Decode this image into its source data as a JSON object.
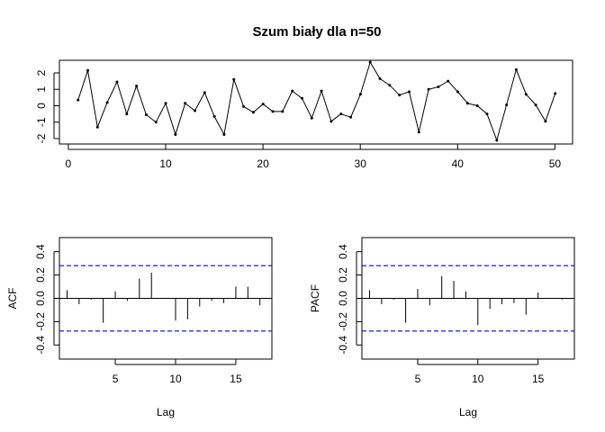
{
  "chart_data": [
    {
      "type": "line",
      "title": "Szum biały dla n=50",
      "xlabel": "",
      "ylabel": "",
      "xlim": [
        1,
        50
      ],
      "ylim": [
        -2.1,
        2.6
      ],
      "x_ticks": [
        "0",
        "10",
        "20",
        "30",
        "40",
        "50"
      ],
      "y_ticks": [
        "-2",
        "-1",
        "0",
        "1",
        "2"
      ],
      "x": [
        1,
        2,
        3,
        4,
        5,
        6,
        7,
        8,
        9,
        10,
        11,
        12,
        13,
        14,
        15,
        16,
        17,
        18,
        19,
        20,
        21,
        22,
        23,
        24,
        25,
        26,
        27,
        28,
        29,
        30,
        31,
        32,
        33,
        34,
        35,
        36,
        37,
        38,
        39,
        40,
        41,
        42,
        43,
        44,
        45,
        46,
        47,
        48,
        49,
        50
      ],
      "values": [
        0.35,
        2.15,
        -1.3,
        0.2,
        1.45,
        -0.5,
        1.2,
        -0.55,
        -1.0,
        0.15,
        -1.75,
        0.15,
        -0.3,
        0.8,
        -0.65,
        -1.75,
        1.6,
        -0.05,
        -0.4,
        0.1,
        -0.35,
        -0.35,
        0.9,
        0.45,
        -0.75,
        0.9,
        -0.95,
        -0.5,
        -0.7,
        0.7,
        2.65,
        1.65,
        1.25,
        0.65,
        0.85,
        -1.6,
        1.0,
        1.15,
        1.5,
        0.85,
        0.15,
        0.0,
        -0.5,
        -2.1,
        0.05,
        2.2,
        0.7,
        0.05,
        -0.95,
        0.75
      ],
      "grid": false,
      "marker": "point"
    },
    {
      "type": "bar",
      "title": "",
      "xlabel": "Lag",
      "ylabel": "ACF",
      "xlim": [
        0.5,
        17.5
      ],
      "ylim": [
        -0.5,
        0.5
      ],
      "x_ticks": [
        "5",
        "10",
        "15"
      ],
      "y_ticks": [
        "-0.4",
        "-0.2",
        "0.0",
        "0.2",
        "0.4"
      ],
      "x": [
        1,
        2,
        3,
        4,
        5,
        6,
        7,
        8,
        9,
        10,
        11,
        12,
        13,
        14,
        15,
        16,
        17
      ],
      "values": [
        0.07,
        -0.05,
        -0.01,
        -0.21,
        0.06,
        -0.02,
        0.17,
        0.22,
        0.0,
        -0.19,
        -0.18,
        -0.07,
        -0.02,
        -0.04,
        0.1,
        0.1,
        -0.06
      ],
      "confidence_band": 0.28,
      "confidence_color": "#0000ff"
    },
    {
      "type": "bar",
      "title": "",
      "xlabel": "Lag",
      "ylabel": "PACF",
      "xlim": [
        0.5,
        17.5
      ],
      "ylim": [
        -0.5,
        0.5
      ],
      "x_ticks": [
        "5",
        "10",
        "15"
      ],
      "y_ticks": [
        "-0.4",
        "-0.2",
        "0.0",
        "0.2",
        "0.4"
      ],
      "x": [
        1,
        2,
        3,
        4,
        5,
        6,
        7,
        8,
        9,
        10,
        11,
        12,
        13,
        14,
        15,
        16,
        17
      ],
      "values": [
        0.07,
        -0.05,
        -0.01,
        -0.21,
        0.08,
        -0.06,
        0.19,
        0.15,
        0.06,
        -0.23,
        -0.09,
        -0.05,
        -0.04,
        -0.14,
        0.05,
        0.0,
        -0.01
      ],
      "confidence_band": 0.28,
      "confidence_color": "#0000ff"
    }
  ]
}
